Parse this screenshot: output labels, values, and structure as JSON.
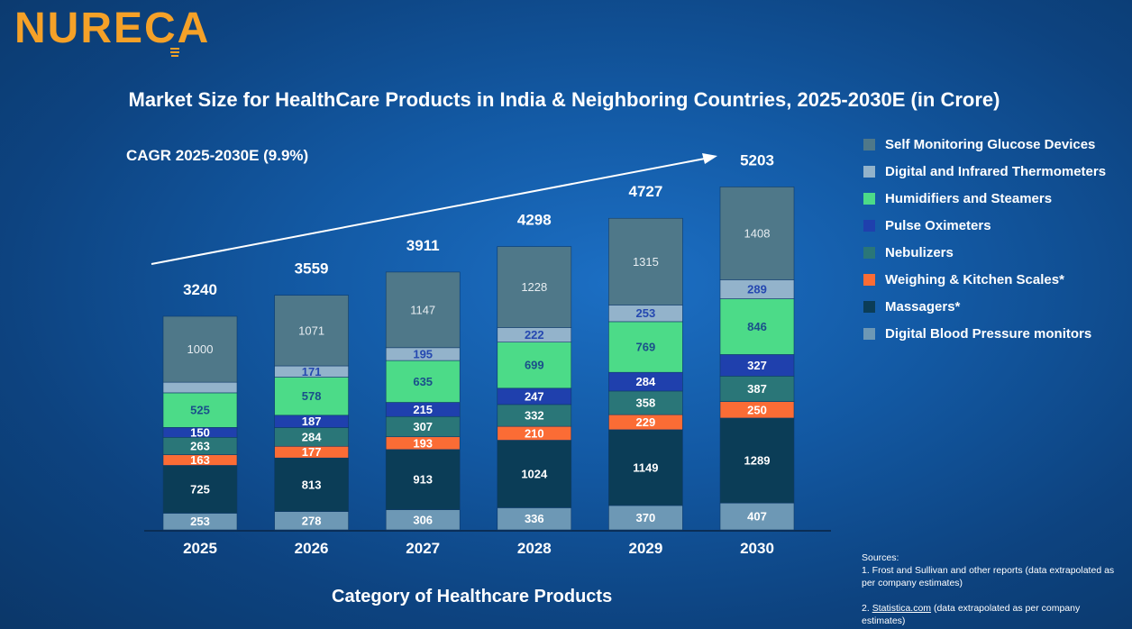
{
  "logo": {
    "text": "NURECA"
  },
  "title": "Market Size for HealthCare Products in India & Neighboring Countries, 2025-2030E (in Crore)",
  "cagr": "CAGR 2025-2030E (9.9%)",
  "sources": {
    "heading": "Sources:",
    "item1": "1. Frost and Sullivan and other reports (data extrapolated as per company estimates)",
    "item2_link": "Statistica.com",
    "item2_prefix": "2. ",
    "item2_suffix": " (data extrapolated as per company estimates)"
  },
  "chart_data": {
    "type": "bar",
    "stacked": true,
    "title": "Market Size for HealthCare Products in India & Neighboring Countries, 2025-2030E (in Crore)",
    "xlabel": "Category of Healthcare Products",
    "ylabel": "",
    "categories": [
      "2025",
      "2026",
      "2027",
      "2028",
      "2029",
      "2030"
    ],
    "totals": [
      3240,
      3559,
      3911,
      4298,
      4727,
      5203
    ],
    "legend_position": "right",
    "series": [
      {
        "name": "Digital Blood Pressure monitors",
        "color": "#6d98b5",
        "label_color": "#ffffff",
        "values": [
          253,
          278,
          306,
          336,
          370,
          407
        ]
      },
      {
        "name": "Massagers*",
        "color": "#0b3d57",
        "label_color": "#ffffff",
        "values": [
          725,
          813,
          913,
          1024,
          1149,
          1289
        ]
      },
      {
        "name": "Weighing & Kitchen Scales*",
        "color": "#fb6c35",
        "label_color": "#ffffff",
        "values": [
          163,
          177,
          193,
          210,
          229,
          250
        ]
      },
      {
        "name": "Nebulizers",
        "color": "#2a7678",
        "label_color": "#ffffff",
        "values": [
          263,
          284,
          307,
          332,
          358,
          387
        ]
      },
      {
        "name": "Pulse Oximeters",
        "color": "#1f40ad",
        "label_color": "#ffffff",
        "values": [
          150,
          187,
          215,
          247,
          284,
          327
        ]
      },
      {
        "name": "Humidifiers and Steamers",
        "color": "#4cdb88",
        "label_color": "#1a4f8a",
        "values": [
          525,
          578,
          635,
          699,
          769,
          846
        ]
      },
      {
        "name": "Digital and Infrared Thermometers",
        "color": "#93b3cb",
        "label_color": "#2548b0",
        "values": [
          161,
          171,
          195,
          222,
          253,
          289
        ]
      },
      {
        "name": "Self Monitoring Glucose Devices",
        "color": "#4f7889",
        "label_color": "#e8eef2",
        "values": [
          1000,
          1071,
          1147,
          1228,
          1315,
          1408
        ]
      }
    ],
    "ylim": [
      0,
      5600
    ],
    "annotation": "CAGR 2025-2030E (9.9%)"
  }
}
